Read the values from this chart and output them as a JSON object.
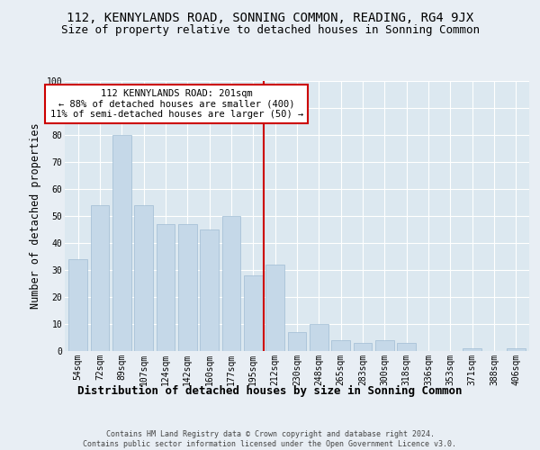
{
  "title": "112, KENNYLANDS ROAD, SONNING COMMON, READING, RG4 9JX",
  "subtitle": "Size of property relative to detached houses in Sonning Common",
  "xlabel": "Distribution of detached houses by size in Sonning Common",
  "ylabel": "Number of detached properties",
  "footer": "Contains HM Land Registry data © Crown copyright and database right 2024.\nContains public sector information licensed under the Open Government Licence v3.0.",
  "bar_labels": [
    "54sqm",
    "72sqm",
    "89sqm",
    "107sqm",
    "124sqm",
    "142sqm",
    "160sqm",
    "177sqm",
    "195sqm",
    "212sqm",
    "230sqm",
    "248sqm",
    "265sqm",
    "283sqm",
    "300sqm",
    "318sqm",
    "336sqm",
    "353sqm",
    "371sqm",
    "388sqm",
    "406sqm"
  ],
  "bar_values": [
    34,
    54,
    80,
    54,
    47,
    47,
    45,
    50,
    28,
    32,
    7,
    10,
    4,
    3,
    4,
    3,
    0,
    0,
    1,
    0,
    1
  ],
  "bar_color": "#c5d8e8",
  "bar_edge_color": "#a0bcd4",
  "vline_x_idx": 8.5,
  "vline_color": "#cc0000",
  "annotation_text": "112 KENNYLANDS ROAD: 201sqm\n← 88% of detached houses are smaller (400)\n11% of semi-detached houses are larger (50) →",
  "annotation_box_color": "#ffffff",
  "annotation_box_edge": "#cc0000",
  "ylim": [
    0,
    100
  ],
  "yticks": [
    0,
    10,
    20,
    30,
    40,
    50,
    60,
    70,
    80,
    90,
    100
  ],
  "bg_color": "#e8eef4",
  "plot_bg_color": "#dce8f0",
  "title_fontsize": 10,
  "subtitle_fontsize": 9,
  "tick_fontsize": 7,
  "ylabel_fontsize": 8.5,
  "xlabel_fontsize": 9,
  "footer_fontsize": 6,
  "annot_fontsize": 7.5
}
